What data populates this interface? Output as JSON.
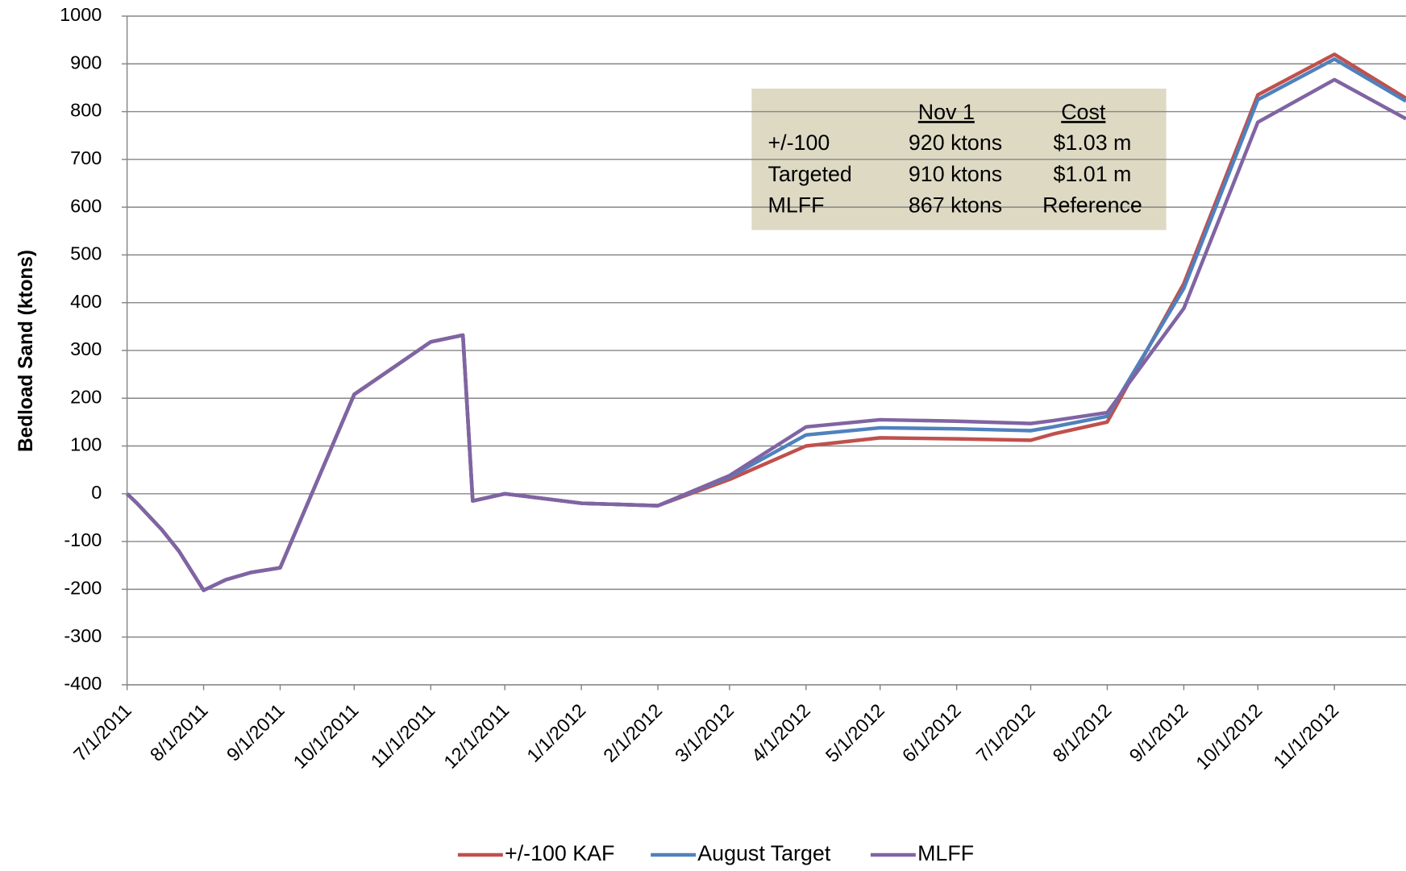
{
  "chart_data": {
    "type": "line",
    "ylabel": "Bedload Sand (ktons)",
    "x": [
      "7/1/2011",
      "7/5/2011",
      "7/15/2011",
      "7/22/2011",
      "8/1/2011",
      "8/10/2011",
      "8/20/2011",
      "9/1/2011",
      "10/1/2011",
      "11/1/2011",
      "11/14/2011",
      "11/18/2011",
      "12/1/2011",
      "1/1/2012",
      "2/1/2012",
      "3/1/2012",
      "4/1/2012",
      "5/1/2012",
      "6/1/2012",
      "7/1/2012",
      "7/10/2012",
      "8/1/2012",
      "9/1/2012",
      "10/1/2012",
      "11/1/2012",
      "11/30/2012"
    ],
    "series": [
      {
        "name": "+/-100 KAF",
        "color": "#c0504d",
        "values": [
          0,
          -20,
          -75,
          -120,
          -202,
          -180,
          -165,
          -155,
          208,
          318,
          332,
          -15,
          0,
          -20,
          -25,
          30,
          100,
          117,
          115,
          112,
          125,
          150,
          440,
          835,
          920,
          828
        ]
      },
      {
        "name": "August Target",
        "color": "#4f81bd",
        "values": [
          0,
          -20,
          -75,
          -120,
          -202,
          -180,
          -165,
          -155,
          208,
          318,
          332,
          -15,
          0,
          -20,
          -25,
          35,
          123,
          138,
          136,
          132,
          140,
          162,
          430,
          825,
          910,
          822
        ]
      },
      {
        "name": "MLFF",
        "color": "#8064a2",
        "values": [
          0,
          -20,
          -75,
          -120,
          -202,
          -180,
          -165,
          -155,
          208,
          318,
          332,
          -15,
          0,
          -20,
          -25,
          38,
          140,
          155,
          152,
          147,
          153,
          170,
          388,
          778,
          867,
          785
        ]
      }
    ],
    "xlim": [
      "7/1/2011",
      "11/30/2012"
    ],
    "xticks": [
      "7/1/2011",
      "8/1/2011",
      "9/1/2011",
      "10/1/2011",
      "11/1/2011",
      "12/1/2011",
      "1/1/2012",
      "2/1/2012",
      "3/1/2012",
      "4/1/2012",
      "5/1/2012",
      "6/1/2012",
      "7/1/2012",
      "8/1/2012",
      "9/1/2012",
      "10/1/2012",
      "11/1/2012"
    ],
    "ylim": [
      -400,
      1000
    ],
    "yticks": [
      -400,
      -300,
      -200,
      -100,
      0,
      100,
      200,
      300,
      400,
      500,
      600,
      700,
      800,
      900,
      1000
    ],
    "grid": true,
    "legend": "bottom",
    "annotation": {
      "header": [
        "Nov 1",
        "Cost"
      ],
      "rows": [
        [
          "+/-100",
          "920 ktons",
          "$1.03 m"
        ],
        [
          "Targeted",
          "910 ktons",
          "$1.01 m"
        ],
        [
          "MLFF",
          "867 ktons",
          "Reference"
        ]
      ]
    }
  }
}
